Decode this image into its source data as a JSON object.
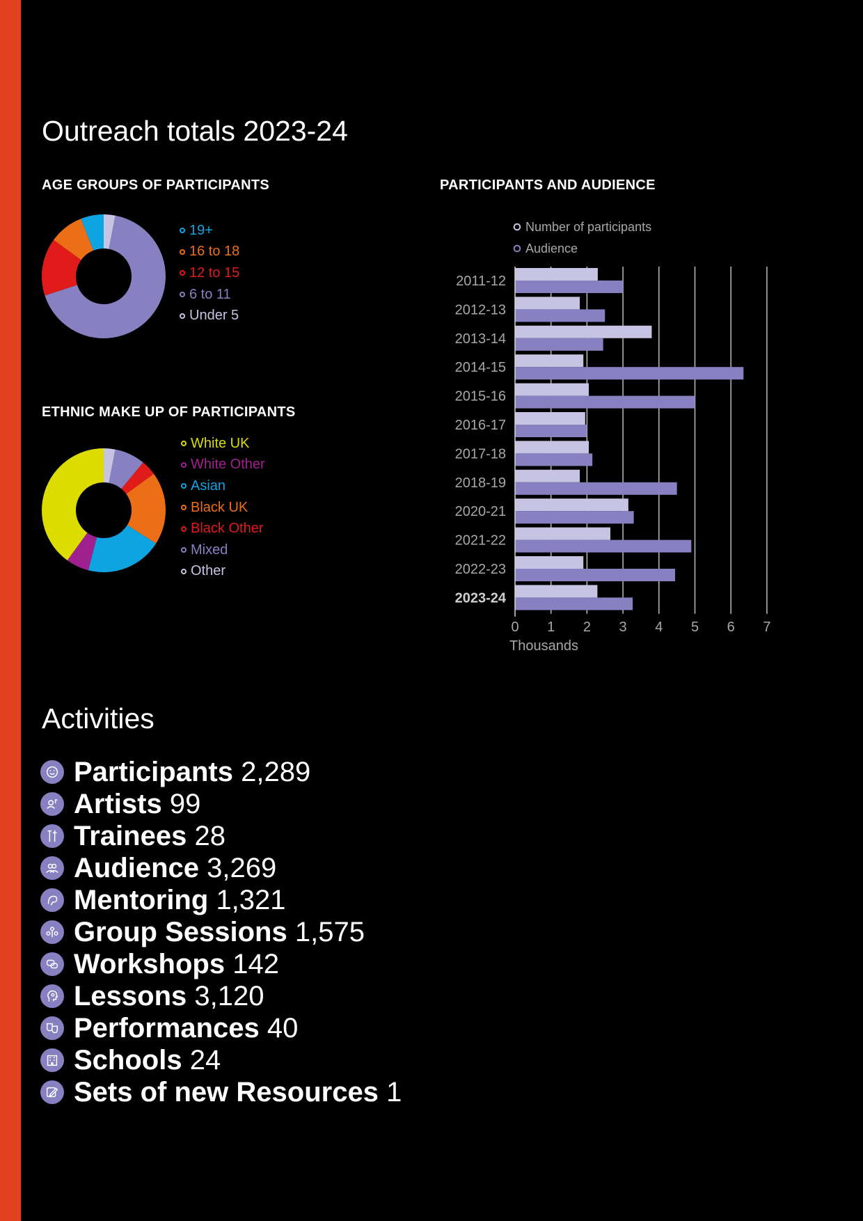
{
  "page": {
    "title": "Outreach totals 2023-24",
    "accent": "#e2401f"
  },
  "age_section": {
    "heading": "AGE GROUPS OF PARTICIPANTS"
  },
  "ethnic_section": {
    "heading": "ETHNIC MAKE UP OF PARTICIPANTS"
  },
  "bar_section": {
    "heading": "PARTICIPANTS AND AUDIENCE"
  },
  "chart_data": [
    {
      "type": "pie",
      "categories": [
        "19+",
        "16 to 18",
        "12 to 15",
        "6 to 11",
        "Under 5"
      ],
      "values": [
        6,
        9,
        15,
        67,
        3
      ],
      "colors": [
        "#0ea4e2",
        "#ec6e17",
        "#e11a1a",
        "#8781c2",
        "#c7c3e3"
      ],
      "donut": true,
      "legend_position": "right"
    },
    {
      "type": "pie",
      "categories": [
        "White UK",
        "White Other",
        "Asian",
        "Black UK",
        "Black Other",
        "Mixed",
        "Other"
      ],
      "values": [
        40,
        6,
        20,
        19,
        4,
        8,
        3
      ],
      "colors": [
        "#dcdc00",
        "#a1208f",
        "#0ea4e2",
        "#ec6e17",
        "#e11a1a",
        "#8781c2",
        "#c7c3e3"
      ],
      "donut": true,
      "legend_position": "right"
    },
    {
      "type": "bar",
      "orientation": "horizontal",
      "categories": [
        "2011-12",
        "2012-13",
        "2013-14",
        "2014-15",
        "2015-16",
        "2016-17",
        "2017-18",
        "2018-19",
        "2020-21",
        "2021-22",
        "2022-23",
        "2023-24"
      ],
      "highlight_category": "2023-24",
      "series": [
        {
          "name": "Number of participants",
          "color": "#c7c3e3",
          "values": [
            2.3,
            1.8,
            3.8,
            1.9,
            2.05,
            1.95,
            2.05,
            1.8,
            3.15,
            2.65,
            1.9,
            2.29
          ]
        },
        {
          "name": "Audience",
          "color": "#8781c2",
          "values": [
            3.0,
            2.5,
            2.45,
            6.35,
            5.0,
            2.0,
            2.15,
            4.5,
            3.3,
            4.9,
            4.45,
            3.27
          ]
        }
      ],
      "xlabel": "Thousands",
      "xlim": [
        0,
        7
      ],
      "xticks": [
        "0",
        "1",
        "2",
        "3",
        "4",
        "5",
        "6",
        "7"
      ],
      "grid": true,
      "legend_position": "top"
    }
  ],
  "activities": {
    "title": "Activities",
    "items": [
      {
        "label": "Participants",
        "value": "2,289",
        "icon": "face-icon"
      },
      {
        "label": "Artists",
        "value": "99",
        "icon": "artist-icon"
      },
      {
        "label": "Trainees",
        "value": "28",
        "icon": "tools-icon"
      },
      {
        "label": "Audience",
        "value": "3,269",
        "icon": "audience-icon"
      },
      {
        "label": "Mentoring",
        "value": "1,321",
        "icon": "mentoring-icon"
      },
      {
        "label": "Group Sessions",
        "value": "1,575",
        "icon": "group-icon"
      },
      {
        "label": "Workshops",
        "value": "142",
        "icon": "workshop-icon"
      },
      {
        "label": "Lessons",
        "value": "3,120",
        "icon": "lesson-icon"
      },
      {
        "label": "Performances",
        "value": "40",
        "icon": "theatre-masks-icon"
      },
      {
        "label": "Schools",
        "value": "24",
        "icon": "school-icon"
      },
      {
        "label": "Sets of new Resources",
        "value": "1",
        "icon": "edit-icon"
      }
    ]
  }
}
